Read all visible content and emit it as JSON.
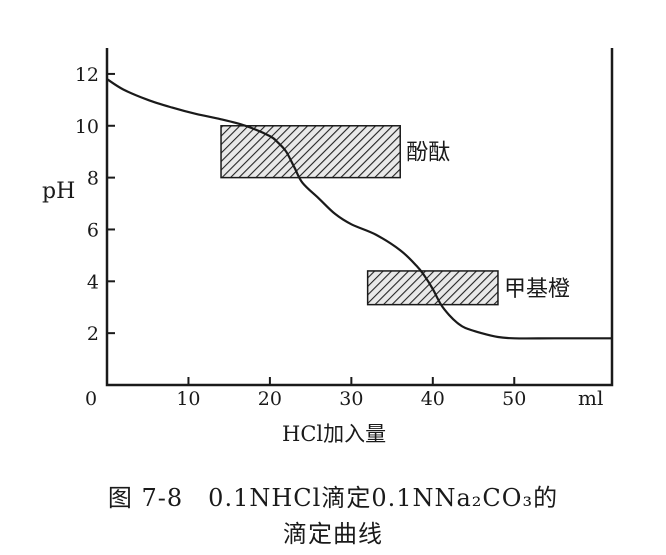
{
  "chart_data": {
    "type": "line",
    "title": "",
    "xlabel": "HCl加入量",
    "ylabel": "pH",
    "x_unit": "ml",
    "xlim": [
      0,
      62
    ],
    "ylim": [
      0,
      13
    ],
    "x_ticks": [
      0,
      10,
      20,
      30,
      40,
      50
    ],
    "y_ticks": [
      2,
      4,
      6,
      8,
      10,
      12
    ],
    "grid": false,
    "series": [
      {
        "x": [
          0,
          2,
          5,
          8,
          11,
          14,
          17,
          20,
          21,
          22,
          23,
          24,
          26,
          28,
          30,
          33,
          36,
          38,
          39,
          40,
          41,
          42,
          43,
          44,
          46,
          48,
          50,
          55,
          62
        ],
        "y": [
          11.8,
          11.4,
          11.0,
          10.7,
          10.45,
          10.25,
          10.0,
          9.6,
          9.35,
          9.0,
          8.4,
          7.8,
          7.2,
          6.6,
          6.2,
          5.8,
          5.2,
          4.6,
          4.2,
          3.7,
          3.1,
          2.7,
          2.4,
          2.2,
          2.0,
          1.85,
          1.8,
          1.8,
          1.8
        ]
      }
    ],
    "indicators": [
      {
        "label": "酚酞",
        "ph_range": [
          8.0,
          10.0
        ],
        "x_range": [
          14,
          36
        ]
      },
      {
        "label": "甲基橙",
        "ph_range": [
          3.1,
          4.4
        ],
        "x_range": [
          32,
          48
        ]
      }
    ]
  },
  "caption": {
    "line1": "图 7-8　0.1NHCl滴定0.1NNa₂CO₃的",
    "line2": "滴定曲线"
  }
}
